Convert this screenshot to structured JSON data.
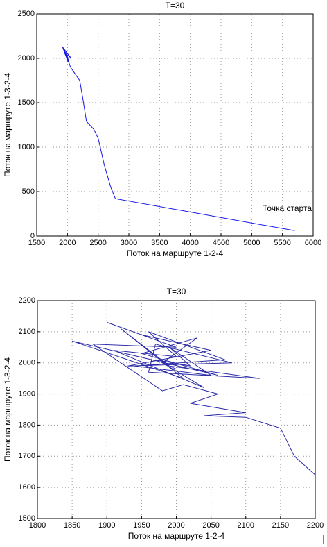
{
  "chart_data": [
    {
      "type": "line",
      "title": "T=30",
      "x_label": "Поток на маршруте 1-2-4",
      "y_label": "Поток на маршруте 1-3-2-4",
      "annotation": "Точка старта",
      "color": "#1414e6",
      "grid": true,
      "xlim": [
        1500,
        6000
      ],
      "xticks": [
        1500,
        2000,
        2500,
        3000,
        3500,
        4000,
        4500,
        5000,
        5500,
        6000
      ],
      "ylim": [
        0,
        2500
      ],
      "yticks": [
        0,
        500,
        1000,
        1500,
        2000,
        2500
      ],
      "x": [
        5700,
        2780,
        2700,
        2600,
        2500,
        2430,
        2310,
        2250,
        2200,
        2120,
        2050,
        1950,
        2010,
        1920,
        2060,
        1980,
        2030,
        1960,
        2040,
        1990,
        2000
      ],
      "values": [
        60,
        420,
        560,
        800,
        1100,
        1200,
        1290,
        1550,
        1750,
        1830,
        1900,
        2100,
        1960,
        2130,
        2000,
        2070,
        1940,
        2050,
        2020,
        1990,
        2030
      ]
    },
    {
      "type": "line",
      "title": "T=30",
      "x_label": "Поток на маршруте 1-2-4",
      "y_label": "Поток на маршруте 1-3-2-4",
      "color": "#2a2aa8",
      "grid": true,
      "xlim": [
        1800,
        2200
      ],
      "xticks": [
        1800,
        1850,
        1900,
        1950,
        2000,
        2050,
        2100,
        2150,
        2200
      ],
      "ylim": [
        1500,
        2200
      ],
      "yticks": [
        1500,
        1600,
        1700,
        1800,
        1900,
        2000,
        2100,
        2200
      ],
      "x": [
        2200,
        2195,
        2170,
        2150,
        2100,
        2040,
        2100,
        2020,
        2060,
        2010,
        1980,
        1880,
        2000,
        1900,
        1950,
        2050,
        1930,
        2080,
        1970,
        1960,
        2120,
        1990,
        1920,
        2010,
        1850,
        2060,
        1950,
        2030,
        1980,
        2040,
        1910,
        2000,
        1960,
        2070,
        1940,
        2050,
        1990,
        2020,
        1970,
        2000
      ],
      "values": [
        1640,
        1650,
        1700,
        1790,
        1825,
        1830,
        1840,
        1870,
        1900,
        1930,
        1910,
        2060,
        2050,
        2130,
        2090,
        2040,
        1990,
        2000,
        2060,
        1970,
        1950,
        1990,
        2110,
        1950,
        2070,
        1960,
        2030,
        2080,
        2000,
        1920,
        2040,
        2020,
        2100,
        2010,
        1990,
        1960,
        2050,
        1990,
        2010,
        1980
      ]
    }
  ]
}
